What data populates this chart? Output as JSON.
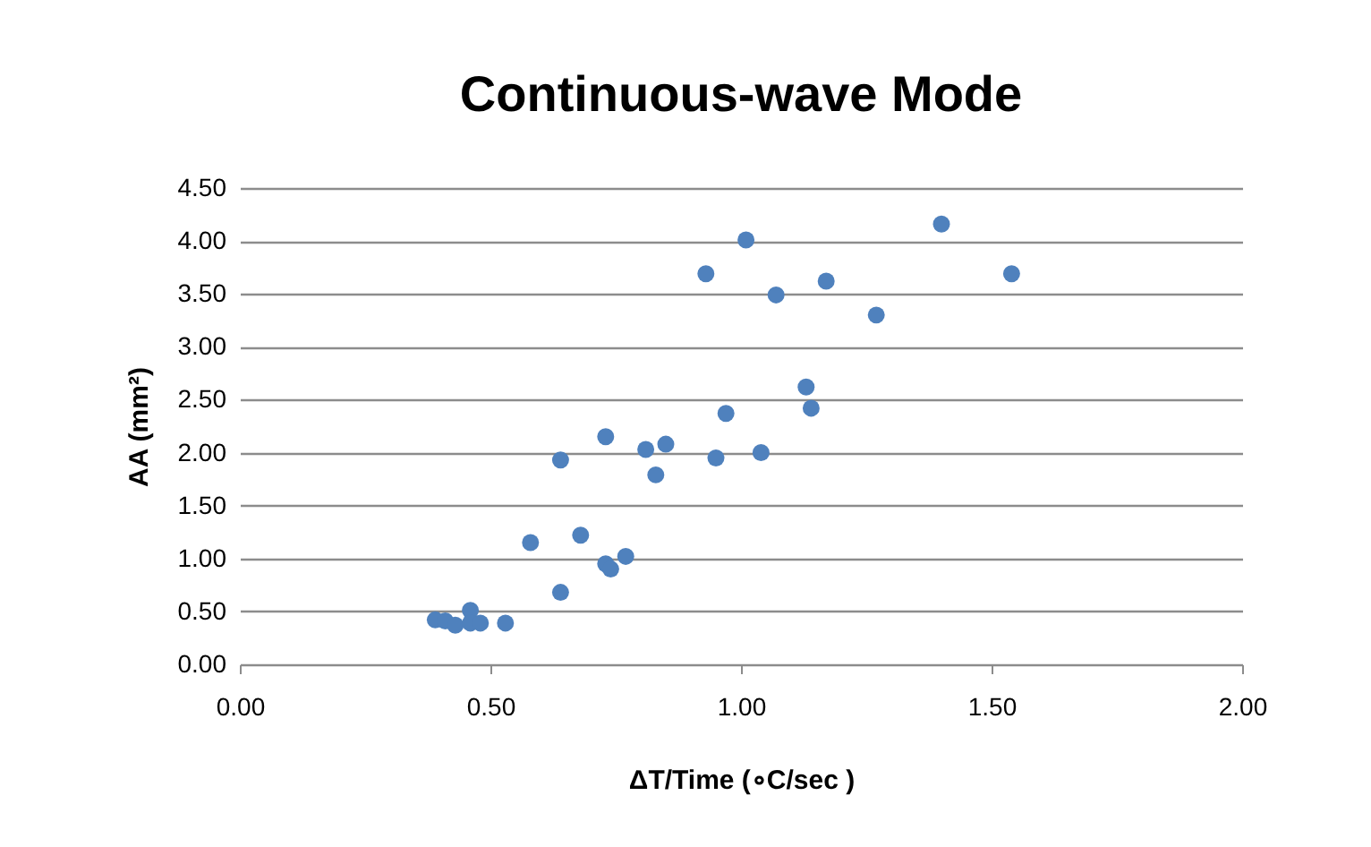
{
  "chart_data": {
    "type": "scatter",
    "title": "Continuous-wave Mode",
    "xlabel": "ΔT/Time (∘C/sec )",
    "ylabel": "AA (mm²)",
    "xlim": [
      0,
      2
    ],
    "xticks": [
      {
        "value": 0,
        "label": "0.00"
      },
      {
        "value": 0.5,
        "label": "0.50"
      },
      {
        "value": 1,
        "label": "1.00"
      },
      {
        "value": 1.5,
        "label": "1.50"
      },
      {
        "value": 2,
        "label": "2.00"
      }
    ],
    "ylim": [
      0,
      4.5
    ],
    "yticks": [
      {
        "value": 0,
        "label": "0.00"
      },
      {
        "value": 0.5,
        "label": "0.50"
      },
      {
        "value": 1,
        "label": "1.00"
      },
      {
        "value": 1.5,
        "label": "1.50"
      },
      {
        "value": 2,
        "label": "2.00"
      },
      {
        "value": 2.5,
        "label": "2.50"
      },
      {
        "value": 3,
        "label": "3.00"
      },
      {
        "value": 3.5,
        "label": "3.50"
      },
      {
        "value": 4,
        "label": "4.00"
      },
      {
        "value": 4.5,
        "label": "4.50"
      }
    ],
    "grid": "y",
    "marker": "circle",
    "series": [
      {
        "color": "#4f81bd",
        "x": [
          0.93,
          1.01,
          1.07,
          1.17,
          1.27,
          1.4,
          1.54,
          1.13,
          1.14,
          0.97,
          0.73,
          0.85,
          0.81,
          0.64,
          0.95,
          1.04,
          0.83,
          0.58,
          0.68,
          0.77,
          0.73,
          0.74,
          0.64,
          0.46,
          0.39,
          0.41,
          0.43,
          0.46,
          0.48,
          0.53
        ],
        "values": [
          3.69,
          4.01,
          3.49,
          3.62,
          3.3,
          4.16,
          3.69,
          2.62,
          2.42,
          2.37,
          2.15,
          2.08,
          2.03,
          1.93,
          1.95,
          2.0,
          1.79,
          1.15,
          1.22,
          1.02,
          0.95,
          0.9,
          0.68,
          0.51,
          0.42,
          0.41,
          0.37,
          0.39,
          0.39,
          0.39
        ]
      }
    ]
  }
}
